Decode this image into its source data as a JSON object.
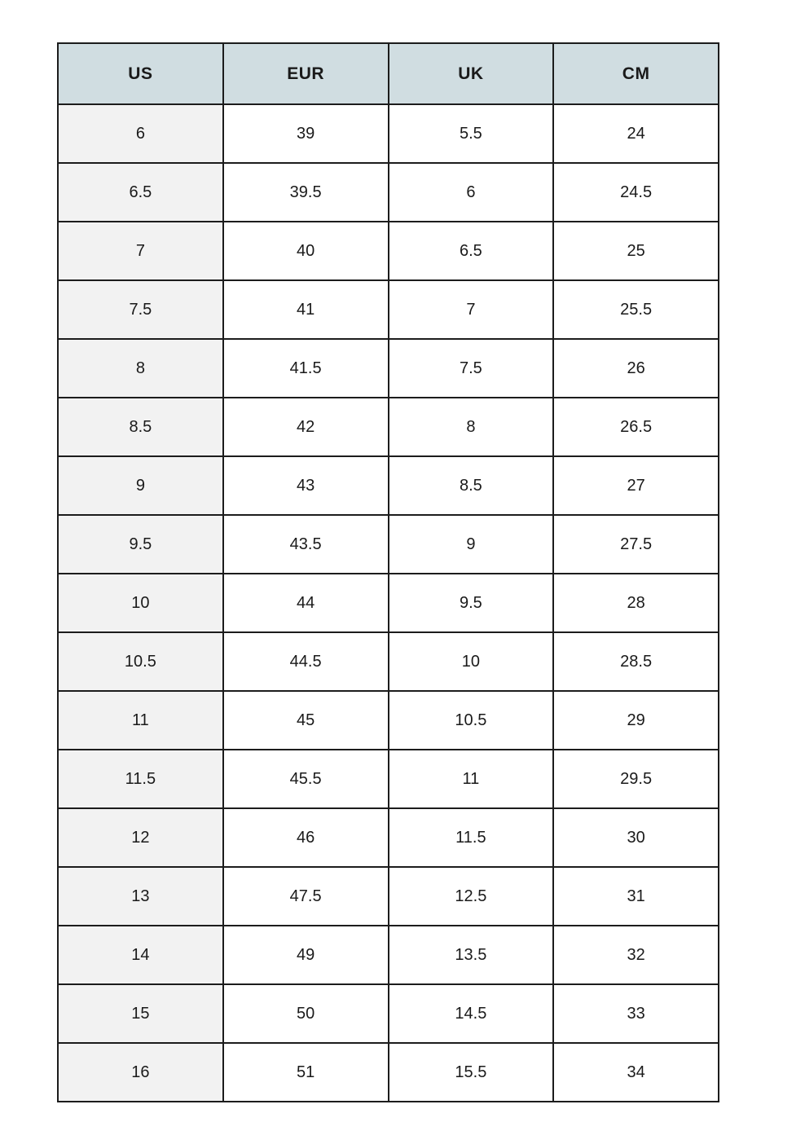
{
  "table": {
    "columns": [
      "US",
      "EUR",
      "UK",
      "CM"
    ],
    "rows": [
      [
        "6",
        "39",
        "5.5",
        "24"
      ],
      [
        "6.5",
        "39.5",
        "6",
        "24.5"
      ],
      [
        "7",
        "40",
        "6.5",
        "25"
      ],
      [
        "7.5",
        "41",
        "7",
        "25.5"
      ],
      [
        "8",
        "41.5",
        "7.5",
        "26"
      ],
      [
        "8.5",
        "42",
        "8",
        "26.5"
      ],
      [
        "9",
        "43",
        "8.5",
        "27"
      ],
      [
        "9.5",
        "43.5",
        "9",
        "27.5"
      ],
      [
        "10",
        "44",
        "9.5",
        "28"
      ],
      [
        "10.5",
        "44.5",
        "10",
        "28.5"
      ],
      [
        "11",
        "45",
        "10.5",
        "29"
      ],
      [
        "11.5",
        "45.5",
        "11",
        "29.5"
      ],
      [
        "12",
        "46",
        "11.5",
        "30"
      ],
      [
        "13",
        "47.5",
        "12.5",
        "31"
      ],
      [
        "14",
        "49",
        "13.5",
        "32"
      ],
      [
        "15",
        "50",
        "14.5",
        "33"
      ],
      [
        "16",
        "51",
        "15.5",
        "34"
      ]
    ]
  },
  "colors": {
    "header_bg": "#d0dde1",
    "first_col_bg": "#f2f2f2",
    "cell_bg": "#ffffff",
    "border": "#1c1c1c",
    "text": "#1a1a1a"
  }
}
